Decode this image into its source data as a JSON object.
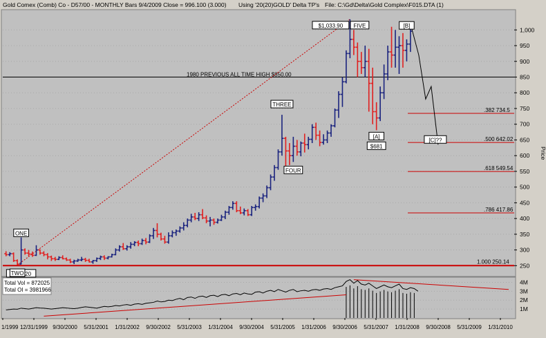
{
  "header": {
    "title": "Gold Comex (Comb) Co - D57/00   - MONTHLY Bars  9/4/2009 Close = 996.100 (3.000)",
    "using": "Using '20(20)GOLD' Delta TP's",
    "file": "File: C:\\Gd\\Delta\\Gold Complex\\F015.DTA (1)"
  },
  "volume_panel": {
    "total_vol": "Total Vol = 872025",
    "total_oi": "Total OI  = 3981966"
  },
  "price_axis_label": "Price",
  "colors": {
    "background": "#c0c0c0",
    "bar_up": "#1a237e",
    "bar_down": "#e02020",
    "fib_line": "#cc0000",
    "level_line": "#000000"
  },
  "chart_data": [
    {
      "type": "ohlc",
      "title": "Gold Comex (Comb) Co - D57/00 - MONTHLY Bars",
      "ylabel": "Price",
      "ylim": [
        220,
        1060
      ],
      "yticks": [
        250,
        300,
        350,
        400,
        450,
        500,
        550,
        600,
        650,
        700,
        750,
        800,
        850,
        900,
        950,
        1000
      ],
      "ytick_labels": [
        "250",
        "300",
        "350",
        "400",
        "450",
        "500",
        "550",
        "600",
        "650",
        "700",
        "750",
        "800",
        "850",
        "900",
        "950",
        "1,000"
      ],
      "x_tick_labels": [
        "1/1999",
        "12/31/1999",
        "9/30/2000",
        "5/31/2001",
        "1/31/2002",
        "9/30/2002",
        "5/31/2003",
        "1/31/2004",
        "9/30/2004",
        "5/31/2005",
        "1/31/2006",
        "9/30/2006",
        "5/31/2007",
        "1/31/2008",
        "9/30/2008",
        "5/31/2009",
        "1/31/2010"
      ],
      "horizontal_levels": [
        {
          "label": "1980 PREVIOUS ALL TIME HIGH $850.00",
          "value": 850
        },
        {
          "label": "1.000  250.14",
          "value": 250.14
        }
      ],
      "fib_levels": [
        {
          "label": ".382  734.5",
          "value": 734.5
        },
        {
          "label": ".500  642.02",
          "value": 642.02
        },
        {
          "label": ".618  549.54",
          "value": 549.54
        },
        {
          "label": ".786  417.86",
          "value": 417.86
        }
      ],
      "wave_labels": [
        {
          "label": "ONE",
          "value": 338
        },
        {
          "label": "$253.20",
          "value": 253.2
        },
        {
          "label": "TWO",
          "value": 255
        },
        {
          "label": "THREE",
          "value": 730
        },
        {
          "label": "FOUR",
          "value": 560
        },
        {
          "label": "$1,033.90",
          "value": 1033.9
        },
        {
          "label": "FIVE",
          "value": 1033.9
        },
        {
          "label": "[A]",
          "value": 681
        },
        {
          "label": "$681",
          "value": 681
        },
        {
          "label": "[B]",
          "value": 1020
        },
        {
          "label": "[C]??",
          "value": 635
        }
      ],
      "series": [
        {
          "values": [
            [
              288,
              296,
              280,
              285
            ],
            [
              285,
              293,
              280,
              288
            ],
            [
              288,
              292,
              262,
              266
            ],
            [
              266,
              270,
              252,
              255
            ],
            [
              255,
              340,
              254,
              300
            ],
            [
              300,
              305,
              285,
              290
            ],
            [
              290,
              300,
              280,
              287
            ],
            [
              287,
              295,
              278,
              283
            ],
            [
              283,
              315,
              281,
              300
            ],
            [
              300,
              302,
              285,
              290
            ],
            [
              290,
              296,
              280,
              285
            ],
            [
              285,
              290,
              270,
              278
            ],
            [
              278,
              282,
              265,
              272
            ],
            [
              272,
              278,
              265,
              270
            ],
            [
              270,
              280,
              268,
              276
            ],
            [
              276,
              283,
              270,
              272
            ],
            [
              272,
              276,
              265,
              268
            ],
            [
              268,
              272,
              258,
              262
            ],
            [
              262,
              269,
              255,
              265
            ],
            [
              265,
              272,
              262,
              268
            ],
            [
              268,
              278,
              264,
              270
            ],
            [
              270,
              275,
              262,
              267
            ],
            [
              267,
              272,
              260,
              262
            ],
            [
              262,
              268,
              256,
              266
            ],
            [
              266,
              276,
              262,
              273
            ],
            [
              273,
              282,
              268,
              278
            ],
            [
              278,
              283,
              268,
              274
            ],
            [
              274,
              280,
              270,
              278
            ],
            [
              278,
              288,
              276,
              285
            ],
            [
              285,
              305,
              283,
              300
            ],
            [
              300,
              315,
              295,
              310
            ],
            [
              310,
              322,
              300,
              304
            ],
            [
              304,
              315,
              298,
              310
            ],
            [
              310,
              325,
              304,
              318
            ],
            [
              318,
              328,
              312,
              324
            ],
            [
              324,
              330,
              312,
              320
            ],
            [
              320,
              336,
              316,
              330
            ],
            [
              330,
              338,
              318,
              325
            ],
            [
              325,
              350,
              322,
              345
            ],
            [
              345,
              370,
              335,
              362
            ],
            [
              362,
              385,
              340,
              350
            ],
            [
              350,
              355,
              330,
              335
            ],
            [
              335,
              345,
              320,
              325
            ],
            [
              325,
              356,
              320,
              345
            ],
            [
              345,
              362,
              340,
              355
            ],
            [
              355,
              365,
              345,
              360
            ],
            [
              360,
              375,
              355,
              370
            ],
            [
              370,
              388,
              362,
              378
            ],
            [
              378,
              400,
              372,
              395
            ],
            [
              395,
              415,
              388,
              405
            ],
            [
              405,
              418,
              395,
              400
            ],
            [
              400,
              420,
              392,
              412
            ],
            [
              412,
              430,
              398,
              402
            ],
            [
              402,
              410,
              385,
              392
            ],
            [
              392,
              405,
              375,
              395
            ],
            [
              395,
              400,
              380,
              388
            ],
            [
              388,
              400,
              384,
              395
            ],
            [
              395,
              412,
              392,
              405
            ],
            [
              405,
              425,
              398,
              420
            ],
            [
              420,
              440,
              412,
              435
            ],
            [
              435,
              455,
              428,
              448
            ],
            [
              448,
              455,
              420,
              425
            ],
            [
              425,
              438,
              414,
              418
            ],
            [
              418,
              432,
              410,
              425
            ],
            [
              425,
              430,
              408,
              412
            ],
            [
              412,
              440,
              408,
              435
            ],
            [
              435,
              445,
              425,
              438
            ],
            [
              438,
              470,
              432,
              465
            ],
            [
              465,
              480,
              452,
              472
            ],
            [
              472,
              505,
              465,
              498
            ],
            [
              498,
              540,
              490,
              532
            ],
            [
              532,
              570,
              520,
              562
            ],
            [
              562,
              620,
              555,
              612
            ],
            [
              612,
              730,
              600,
              655
            ],
            [
              655,
              660,
              545,
              615
            ],
            [
              615,
              640,
              570,
              600
            ],
            [
              600,
              660,
              580,
              630
            ],
            [
              630,
              650,
              600,
              612
            ],
            [
              612,
              645,
              598,
              640
            ],
            [
              640,
              670,
              610,
              635
            ],
            [
              635,
              660,
              620,
              652
            ],
            [
              652,
              700,
              640,
              690
            ],
            [
              690,
              705,
              650,
              665
            ],
            [
              665,
              680,
              630,
              642
            ],
            [
              642,
              668,
              635,
              650
            ],
            [
              650,
              680,
              640,
              672
            ],
            [
              672,
              700,
              660,
              695
            ],
            [
              695,
              750,
              690,
              745
            ],
            [
              745,
              805,
              720,
              795
            ],
            [
              795,
              850,
              755,
              835
            ],
            [
              835,
              935,
              830,
              925
            ],
            [
              925,
              1033.9,
              910,
              970
            ],
            [
              970,
              1000,
              920,
              945
            ],
            [
              945,
              960,
              850,
              900
            ],
            [
              900,
              930,
              860,
              880
            ],
            [
              880,
              950,
              850,
              900
            ],
            [
              900,
              940,
              740,
              830
            ],
            [
              830,
              880,
              700,
              740
            ],
            [
              740,
              770,
              681,
              720
            ],
            [
              720,
              820,
              710,
              800
            ],
            [
              800,
              890,
              780,
              860
            ],
            [
              860,
              950,
              840,
              930
            ],
            [
              930,
              1010,
              880,
              920
            ],
            [
              920,
              1000,
              880,
              945
            ],
            [
              945,
              980,
              860,
              950
            ],
            [
              950,
              990,
              880,
              935
            ],
            [
              935,
              970,
              900,
              955
            ],
            [
              955,
              1020,
              930,
              996
            ]
          ]
        }
      ]
    },
    {
      "type": "line",
      "title": "Volume / Open Interest",
      "ylim": [
        0,
        4500000
      ],
      "yticks": [
        1000000,
        2000000,
        3000000,
        4000000
      ],
      "ytick_labels": [
        "1M",
        "2M",
        "3M",
        "4M"
      ],
      "series": [
        {
          "values": [
            150000,
            160000,
            170000,
            180000,
            175000,
            190000,
            200000,
            210000,
            205000,
            220000,
            230000,
            240000,
            250000,
            245000,
            260000,
            270000,
            280000,
            275000,
            290000,
            300000,
            310000,
            320000,
            330000,
            340000,
            350000,
            360000,
            370000,
            380000,
            390000,
            400000,
            420000,
            440000,
            460000,
            480000,
            500000,
            520000,
            540000,
            560000,
            580000,
            600000,
            620000,
            640000,
            660000,
            680000,
            700000,
            720000,
            740000,
            760000,
            780000,
            800000,
            820000,
            840000,
            860000,
            880000,
            900000,
            920000,
            940000,
            960000,
            980000,
            1000000,
            1020000,
            1040000,
            1060000,
            1080000,
            1100000,
            1120000,
            1140000,
            1160000,
            1180000,
            1200000,
            1220000,
            1240000,
            1260000,
            1280000,
            1300000,
            1320000,
            1340000,
            1360000,
            1380000,
            1400000,
            1420000,
            1440000,
            1460000,
            1480000,
            1500000,
            1520000,
            1540000,
            1560000,
            1580000,
            1600000,
            1620000,
            1640000,
            1660000,
            1680000,
            1700000,
            1720000,
            1740000,
            1760000,
            1780000,
            1800000,
            1820000,
            1840000,
            1860000,
            1880000,
            1900000,
            1920000,
            1940000,
            1960000,
            1980000
          ]
        },
        {
          "values": [
            900000,
            950000,
            1000000,
            980000,
            1100000,
            1050000,
            1000000,
            1080000,
            1150000,
            1120000,
            1100000,
            1050000,
            1000000,
            1050000,
            1100000,
            1150000,
            1120000,
            1080000,
            1050000,
            1100000,
            1180000,
            1250000,
            1200000,
            1150000,
            1100000,
            1200000,
            1300000,
            1250000,
            1300000,
            1400000,
            1350000,
            1450000,
            1500000,
            1420000,
            1550000,
            1600000,
            1520000,
            1650000,
            1700000,
            1750000,
            1900000,
            1800000,
            1850000,
            2000000,
            1950000,
            2100000,
            2200000,
            2050000,
            2300000,
            2350000,
            2200000,
            2400000,
            2450000,
            2300000,
            2500000,
            2550000,
            2400000,
            2600000,
            2650000,
            2500000,
            2700000,
            2750000,
            2600000,
            2800000,
            2700000,
            2650000,
            2900000,
            2950000,
            2800000,
            3000000,
            3100000,
            2950000,
            3200000,
            3050000,
            2900000,
            3100000,
            3200000,
            2950000,
            3050000,
            3100000,
            3000000,
            3150000,
            3200000,
            3100000,
            3250000,
            3300000,
            3200000,
            3400000,
            3500000,
            3600000,
            4100000,
            4300000,
            3900000,
            4200000,
            3800000,
            3700000,
            3900000,
            3600000,
            3300000,
            3500000,
            3700000,
            3500000,
            3400000,
            3600000,
            3800000,
            3300000,
            3200000,
            3400000,
            3300000,
            3000000
          ]
        }
      ]
    }
  ]
}
